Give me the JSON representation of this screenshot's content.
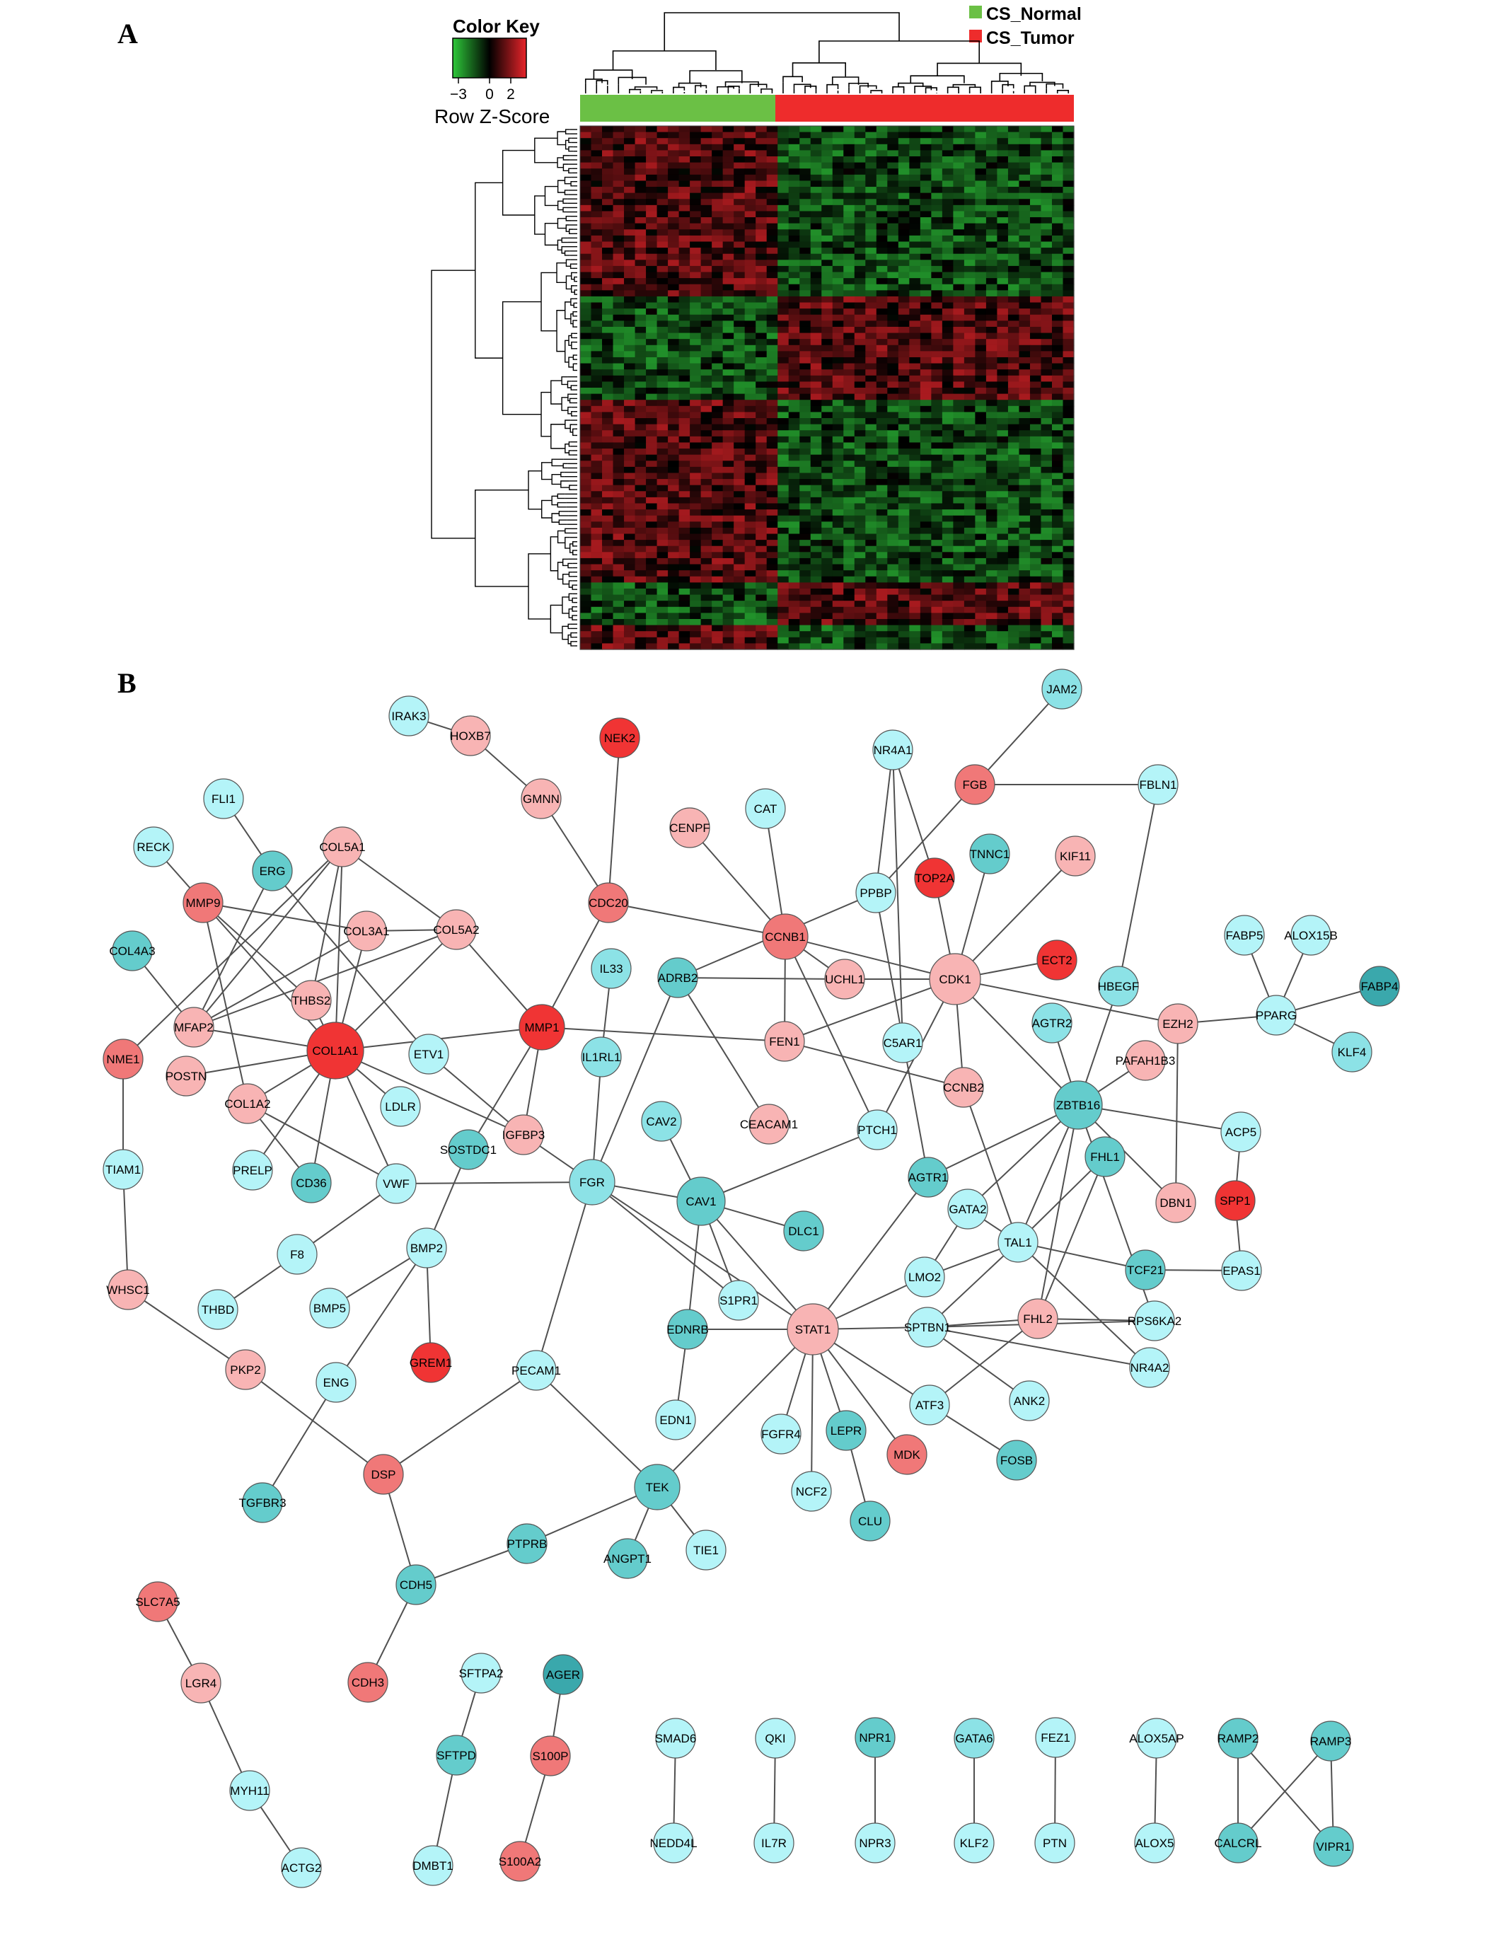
{
  "panels": {
    "a": "A",
    "b": "B"
  },
  "heatmap": {
    "color_key_title": "Color Key",
    "color_key_ticks": [
      "−3",
      "0",
      "2"
    ],
    "color_key_label": "Row Z-Score",
    "scale_colors": [
      "#2ec83a",
      "#000000",
      "#e8242a"
    ],
    "legend": [
      {
        "label": "CS_Normal",
        "color": "#6bc045"
      },
      {
        "label": "CS_Tumor",
        "color": "#ee2c2c"
      }
    ],
    "normal_samples": 18,
    "tumor_samples": 27,
    "row_blocks": [
      {
        "normal": "up",
        "tumor": "down",
        "rows": 28
      },
      {
        "normal": "down",
        "tumor": "up",
        "rows": 17
      },
      {
        "normal": "up",
        "tumor": "down",
        "rows": 30
      },
      {
        "normal": "down",
        "tumor": "up",
        "rows": 7
      },
      {
        "normal": "up",
        "tumor": "down",
        "rows": 4
      }
    ]
  },
  "network": {
    "node_colors": {
      "red": "#f03434",
      "salmon": "#f07878",
      "pink": "#f8b4b4",
      "cyan_light": "#b4f4f8",
      "cyan": "#8ce2e6",
      "teal": "#64cccc",
      "teal_dark": "#3aa8ac"
    },
    "nodes": [
      {
        "id": "IRAK3",
        "c": "cyan_light"
      },
      {
        "id": "HOXB7",
        "c": "pink"
      },
      {
        "id": "NEK2",
        "c": "red"
      },
      {
        "id": "JAM2",
        "c": "cyan"
      },
      {
        "id": "NR4A1",
        "c": "cyan_light"
      },
      {
        "id": "FGB",
        "c": "salmon"
      },
      {
        "id": "FBLN1",
        "c": "cyan_light"
      },
      {
        "id": "FLI1",
        "c": "cyan_light"
      },
      {
        "id": "GMNN",
        "c": "pink"
      },
      {
        "id": "CAT",
        "c": "cyan_light"
      },
      {
        "id": "CENPF",
        "c": "pink"
      },
      {
        "id": "RECK",
        "c": "cyan_light"
      },
      {
        "id": "ERG",
        "c": "teal"
      },
      {
        "id": "COL5A1",
        "c": "pink"
      },
      {
        "id": "TNNC1",
        "c": "teal"
      },
      {
        "id": "KIF11",
        "c": "pink"
      },
      {
        "id": "TOP2A",
        "c": "red"
      },
      {
        "id": "MMP9",
        "c": "salmon"
      },
      {
        "id": "CDC20",
        "c": "salmon"
      },
      {
        "id": "PPBP",
        "c": "cyan_light"
      },
      {
        "id": "COL3A1",
        "c": "pink"
      },
      {
        "id": "COL5A2",
        "c": "pink"
      },
      {
        "id": "CCNB1",
        "c": "salmon"
      },
      {
        "id": "COL4A3",
        "c": "teal"
      },
      {
        "id": "ALOX15B",
        "c": "cyan_light"
      },
      {
        "id": "FABP5",
        "c": "cyan_light"
      },
      {
        "id": "ECT2",
        "c": "red"
      },
      {
        "id": "IL33",
        "c": "cyan"
      },
      {
        "id": "ADRB2",
        "c": "teal"
      },
      {
        "id": "THBS2",
        "c": "pink"
      },
      {
        "id": "UCHL1",
        "c": "pink"
      },
      {
        "id": "CDK1",
        "c": "pink"
      },
      {
        "id": "HBEGF",
        "c": "cyan"
      },
      {
        "id": "FABP4",
        "c": "teal_dark"
      },
      {
        "id": "MMP1",
        "c": "red"
      },
      {
        "id": "PPARG",
        "c": "cyan_light"
      },
      {
        "id": "MFAP2",
        "c": "pink"
      },
      {
        "id": "AGTR2",
        "c": "cyan"
      },
      {
        "id": "EZH2",
        "c": "pink"
      },
      {
        "id": "C5AR1",
        "c": "cyan_light"
      },
      {
        "id": "FEN1",
        "c": "pink"
      },
      {
        "id": "COL1A1",
        "c": "red"
      },
      {
        "id": "NME1",
        "c": "salmon"
      },
      {
        "id": "ETV1",
        "c": "cyan_light"
      },
      {
        "id": "IL1RL1",
        "c": "cyan"
      },
      {
        "id": "PAFAH1B3",
        "c": "pink"
      },
      {
        "id": "KLF4",
        "c": "cyan"
      },
      {
        "id": "POSTN",
        "c": "pink"
      },
      {
        "id": "CCNB2",
        "c": "pink"
      },
      {
        "id": "ZBTB16",
        "c": "teal"
      },
      {
        "id": "COL1A2",
        "c": "pink"
      },
      {
        "id": "LDLR",
        "c": "cyan_light"
      },
      {
        "id": "CAV2",
        "c": "cyan"
      },
      {
        "id": "CEACAM1",
        "c": "pink"
      },
      {
        "id": "PTCH1",
        "c": "cyan_light"
      },
      {
        "id": "ACP5",
        "c": "cyan_light"
      },
      {
        "id": "SOSTDC1",
        "c": "teal"
      },
      {
        "id": "IGFBP3",
        "c": "pink"
      },
      {
        "id": "FHL1",
        "c": "teal"
      },
      {
        "id": "TIAM1",
        "c": "cyan_light"
      },
      {
        "id": "PRELP",
        "c": "cyan_light"
      },
      {
        "id": "CD36",
        "c": "teal"
      },
      {
        "id": "VWF",
        "c": "cyan_light"
      },
      {
        "id": "FGR",
        "c": "cyan"
      },
      {
        "id": "AGTR1",
        "c": "teal"
      },
      {
        "id": "CAV1",
        "c": "teal"
      },
      {
        "id": "GATA2",
        "c": "cyan_light"
      },
      {
        "id": "SPP1",
        "c": "red"
      },
      {
        "id": "DBN1",
        "c": "pink"
      },
      {
        "id": "DLC1",
        "c": "teal"
      },
      {
        "id": "BMP2",
        "c": "cyan_light"
      },
      {
        "id": "TAL1",
        "c": "cyan_light"
      },
      {
        "id": "F8",
        "c": "cyan_light"
      },
      {
        "id": "TCF21",
        "c": "teal"
      },
      {
        "id": "EPAS1",
        "c": "cyan_light"
      },
      {
        "id": "LMO2",
        "c": "cyan_light"
      },
      {
        "id": "WHSC1",
        "c": "pink"
      },
      {
        "id": "S1PR1",
        "c": "cyan_light"
      },
      {
        "id": "THBD",
        "c": "cyan_light"
      },
      {
        "id": "BMP5",
        "c": "cyan_light"
      },
      {
        "id": "FHL2",
        "c": "pink"
      },
      {
        "id": "RPS6KA2",
        "c": "cyan_light"
      },
      {
        "id": "EDNRB",
        "c": "teal"
      },
      {
        "id": "STAT1",
        "c": "pink"
      },
      {
        "id": "SPTBN1",
        "c": "cyan_light"
      },
      {
        "id": "GREM1",
        "c": "red"
      },
      {
        "id": "PKP2",
        "c": "pink"
      },
      {
        "id": "PECAM1",
        "c": "cyan_light"
      },
      {
        "id": "ENG",
        "c": "cyan_light"
      },
      {
        "id": "NR4A2",
        "c": "cyan_light"
      },
      {
        "id": "ATF3",
        "c": "cyan_light"
      },
      {
        "id": "ANK2",
        "c": "cyan_light"
      },
      {
        "id": "EDN1",
        "c": "cyan_light"
      },
      {
        "id": "FGFR4",
        "c": "cyan_light"
      },
      {
        "id": "LEPR",
        "c": "teal"
      },
      {
        "id": "MDK",
        "c": "salmon"
      },
      {
        "id": "FOSB",
        "c": "teal"
      },
      {
        "id": "DSP",
        "c": "salmon"
      },
      {
        "id": "TEK",
        "c": "teal"
      },
      {
        "id": "NCF2",
        "c": "cyan_light"
      },
      {
        "id": "TGFBR3",
        "c": "teal"
      },
      {
        "id": "CLU",
        "c": "teal"
      },
      {
        "id": "PTPRB",
        "c": "teal"
      },
      {
        "id": "TIE1",
        "c": "cyan_light"
      },
      {
        "id": "ANGPT1",
        "c": "teal"
      },
      {
        "id": "CDH5",
        "c": "teal"
      },
      {
        "id": "SLC7A5",
        "c": "salmon"
      },
      {
        "id": "LGR4",
        "c": "pink"
      },
      {
        "id": "CDH3",
        "c": "salmon"
      },
      {
        "id": "SFTPA2",
        "c": "cyan_light"
      },
      {
        "id": "AGER",
        "c": "teal_dark"
      },
      {
        "id": "SMAD6",
        "c": "cyan_light"
      },
      {
        "id": "QKI",
        "c": "cyan_light"
      },
      {
        "id": "NPR1",
        "c": "teal"
      },
      {
        "id": "GATA6",
        "c": "cyan"
      },
      {
        "id": "FEZ1",
        "c": "cyan_light"
      },
      {
        "id": "ALOX5AP",
        "c": "cyan_light"
      },
      {
        "id": "RAMP2",
        "c": "teal"
      },
      {
        "id": "RAMP3",
        "c": "teal"
      },
      {
        "id": "SFTPD",
        "c": "teal"
      },
      {
        "id": "S100P",
        "c": "salmon"
      },
      {
        "id": "MYH11",
        "c": "cyan_light"
      },
      {
        "id": "NEDD4L",
        "c": "cyan_light"
      },
      {
        "id": "IL7R",
        "c": "cyan_light"
      },
      {
        "id": "NPR3",
        "c": "cyan_light"
      },
      {
        "id": "KLF2",
        "c": "cyan_light"
      },
      {
        "id": "PTN",
        "c": "cyan_light"
      },
      {
        "id": "ALOX5",
        "c": "cyan_light"
      },
      {
        "id": "CALCRL",
        "c": "teal"
      },
      {
        "id": "VIPR1",
        "c": "teal"
      },
      {
        "id": "DMBT1",
        "c": "cyan_light"
      },
      {
        "id": "S100A2",
        "c": "salmon"
      },
      {
        "id": "ACTG2",
        "c": "cyan_light"
      }
    ],
    "edges": [
      [
        "IRAK3",
        "HOXB7"
      ],
      [
        "HOXB7",
        "GMNN"
      ],
      [
        "GMNN",
        "CDC20"
      ],
      [
        "NEK2",
        "CDC20"
      ],
      [
        "CDC20",
        "CCNB1"
      ],
      [
        "CDC20",
        "MMP1"
      ],
      [
        "CENPF",
        "CCNB1"
      ],
      [
        "CAT",
        "CCNB1"
      ],
      [
        "CCNB1",
        "CDK1"
      ],
      [
        "CCNB1",
        "FEN1"
      ],
      [
        "CCNB1",
        "PTCH1"
      ],
      [
        "UCHL1",
        "CCNB1"
      ],
      [
        "NR4A1",
        "PPBP"
      ],
      [
        "NR4A1",
        "TOP2A"
      ],
      [
        "NR4A1",
        "C5AR1"
      ],
      [
        "FGB",
        "PPBP"
      ],
      [
        "FGB",
        "FBLN1"
      ],
      [
        "FGB",
        "JAM2"
      ],
      [
        "FBLN1",
        "HBEGF"
      ],
      [
        "TOP2A",
        "CDK1"
      ],
      [
        "TNNC1",
        "CDK1"
      ],
      [
        "KIF11",
        "CDK1"
      ],
      [
        "ECT2",
        "CDK1"
      ],
      [
        "CDK1",
        "UCHL1"
      ],
      [
        "CDK1",
        "EZH2"
      ],
      [
        "CDK1",
        "ZBTB16"
      ],
      [
        "CDK1",
        "FEN1"
      ],
      [
        "CDK1",
        "CCNB2"
      ],
      [
        "CDK1",
        "PTCH1"
      ],
      [
        "PPBP",
        "ADRB2"
      ],
      [
        "PPBP",
        "AGTR1"
      ],
      [
        "ADRB2",
        "UCHL1"
      ],
      [
        "ADRB2",
        "CEACAM1"
      ],
      [
        "ADRB2",
        "FGR"
      ],
      [
        "FABP5",
        "PPARG"
      ],
      [
        "ALOX15B",
        "PPARG"
      ],
      [
        "FABP4",
        "PPARG"
      ],
      [
        "KLF4",
        "PPARG"
      ],
      [
        "PPARG",
        "EZH2"
      ],
      [
        "EZH2",
        "DBN1"
      ],
      [
        "HBEGF",
        "ZBTB16"
      ],
      [
        "AGTR2",
        "ZBTB16"
      ],
      [
        "PAFAH1B3",
        "ZBTB16"
      ],
      [
        "ZBTB16",
        "ACP5"
      ],
      [
        "ZBTB16",
        "TAL1"
      ],
      [
        "ZBTB16",
        "GATA2"
      ],
      [
        "ZBTB16",
        "AGTR1"
      ],
      [
        "ZBTB16",
        "FHL2"
      ],
      [
        "ZBTB16",
        "DBN1"
      ],
      [
        "ZBTB16",
        "RPS6KA2"
      ],
      [
        "ACP5",
        "SPP1"
      ],
      [
        "SPP1",
        "EPAS1"
      ],
      [
        "FHL1",
        "FHL2"
      ],
      [
        "FHL1",
        "TAL1"
      ],
      [
        "TAL1",
        "GATA2"
      ],
      [
        "TAL1",
        "LMO2"
      ],
      [
        "TAL1",
        "TCF21"
      ],
      [
        "TAL1",
        "NR4A2"
      ],
      [
        "TAL1",
        "SPTBN1"
      ],
      [
        "TAL1",
        "CCNB2"
      ],
      [
        "TCF21",
        "EPAS1"
      ],
      [
        "GATA2",
        "LMO2"
      ],
      [
        "FHL2",
        "SPTBN1"
      ],
      [
        "FHL2",
        "ATF3"
      ],
      [
        "FHL2",
        "RPS6KA2"
      ],
      [
        "SPTBN1",
        "RPS6KA2"
      ],
      [
        "SPTBN1",
        "NR4A2"
      ],
      [
        "SPTBN1",
        "ANK2"
      ],
      [
        "SPTBN1",
        "STAT1"
      ],
      [
        "STAT1",
        "LMO2"
      ],
      [
        "STAT1",
        "AGTR1"
      ],
      [
        "STAT1",
        "EDNRB"
      ],
      [
        "STAT1",
        "CAV1"
      ],
      [
        "STAT1",
        "FGR"
      ],
      [
        "STAT1",
        "ATF3"
      ],
      [
        "STAT1",
        "MDK"
      ],
      [
        "STAT1",
        "LEPR"
      ],
      [
        "STAT1",
        "NCF2"
      ],
      [
        "STAT1",
        "FGFR4"
      ],
      [
        "STAT1",
        "TEK"
      ],
      [
        "ATF3",
        "FOSB"
      ],
      [
        "LEPR",
        "CLU"
      ],
      [
        "EDNRB",
        "EDN1"
      ],
      [
        "EDNRB",
        "CAV1"
      ],
      [
        "CAV2",
        "CAV1"
      ],
      [
        "CAV1",
        "DLC1"
      ],
      [
        "CAV1",
        "S1PR1"
      ],
      [
        "CAV1",
        "PTCH1"
      ],
      [
        "CAV1",
        "FGR"
      ],
      [
        "FGR",
        "S1PR1"
      ],
      [
        "FGR",
        "IL1RL1"
      ],
      [
        "FGR",
        "VWF"
      ],
      [
        "FGR",
        "IGFBP3"
      ],
      [
        "FGR",
        "PECAM1"
      ],
      [
        "IL1RL1",
        "IL33"
      ],
      [
        "PECAM1",
        "TEK"
      ],
      [
        "PECAM1",
        "DSP"
      ],
      [
        "TEK",
        "PTPRB"
      ],
      [
        "TEK",
        "ANGPT1"
      ],
      [
        "TEK",
        "TIE1"
      ],
      [
        "PTPRB",
        "CDH5"
      ],
      [
        "CDH5",
        "DSP"
      ],
      [
        "CDH5",
        "CDH3"
      ],
      [
        "DSP",
        "PKP2"
      ],
      [
        "PKP2",
        "WHSC1"
      ],
      [
        "WHSC1",
        "TIAM1"
      ],
      [
        "TIAM1",
        "NME1"
      ],
      [
        "NME1",
        "COL5A1"
      ],
      [
        "MMP1",
        "FEN1"
      ],
      [
        "MMP1",
        "COL5A2"
      ],
      [
        "MMP1",
        "COL1A1"
      ],
      [
        "MMP1",
        "IGFBP3"
      ],
      [
        "MMP1",
        "SOSTDC1"
      ],
      [
        "FEN1",
        "CCNB2"
      ],
      [
        "COL1A1",
        "COL5A1"
      ],
      [
        "COL1A1",
        "COL3A1"
      ],
      [
        "COL1A1",
        "COL5A2"
      ],
      [
        "COL1A1",
        "MMP9"
      ],
      [
        "COL1A1",
        "THBS2"
      ],
      [
        "COL1A1",
        "MFAP2"
      ],
      [
        "COL1A1",
        "POSTN"
      ],
      [
        "COL1A1",
        "COL1A2"
      ],
      [
        "COL1A1",
        "PRELP"
      ],
      [
        "COL1A1",
        "CD36"
      ],
      [
        "COL1A1",
        "VWF"
      ],
      [
        "COL1A1",
        "IGFBP3"
      ],
      [
        "COL1A1",
        "LDLR"
      ],
      [
        "MMP9",
        "COL3A1"
      ],
      [
        "MMP9",
        "THBS2"
      ],
      [
        "MMP9",
        "COL1A2"
      ],
      [
        "FLI1",
        "ERG"
      ],
      [
        "ERG",
        "ETV1"
      ],
      [
        "ERG",
        "MFAP2"
      ],
      [
        "RECK",
        "MMP9"
      ],
      [
        "COL4A3",
        "MFAP2"
      ],
      [
        "COL5A1",
        "COL5A2"
      ],
      [
        "COL5A1",
        "THBS2"
      ],
      [
        "COL5A1",
        "MFAP2"
      ],
      [
        "COL3A1",
        "COL5A2"
      ],
      [
        "COL3A1",
        "MFAP2"
      ],
      [
        "COL5A2",
        "MFAP2"
      ],
      [
        "ETV1",
        "IGFBP3"
      ],
      [
        "COL1A2",
        "VWF"
      ],
      [
        "COL1A2",
        "CD36"
      ],
      [
        "SOSTDC1",
        "BMP2"
      ],
      [
        "BMP2",
        "BMP5"
      ],
      [
        "BMP2",
        "GREM1"
      ],
      [
        "BMP2",
        "ENG"
      ],
      [
        "ENG",
        "TGFBR3"
      ],
      [
        "VWF",
        "F8"
      ],
      [
        "F8",
        "THBD"
      ],
      [
        "SLC7A5",
        "LGR4"
      ],
      [
        "LGR4",
        "MYH11"
      ],
      [
        "MYH11",
        "ACTG2"
      ],
      [
        "SFTPA2",
        "SFTPD"
      ],
      [
        "SFTPD",
        "DMBT1"
      ],
      [
        "AGER",
        "S100P"
      ],
      [
        "S100P",
        "S100A2"
      ],
      [
        "SMAD6",
        "NEDD4L"
      ],
      [
        "QKI",
        "IL7R"
      ],
      [
        "NPR1",
        "NPR3"
      ],
      [
        "GATA6",
        "KLF2"
      ],
      [
        "FEZ1",
        "PTN"
      ],
      [
        "ALOX5AP",
        "ALOX5"
      ],
      [
        "RAMP2",
        "CALCRL"
      ],
      [
        "RAMP2",
        "VIPR1"
      ],
      [
        "RAMP3",
        "CALCRL"
      ],
      [
        "RAMP3",
        "VIPR1"
      ]
    ]
  }
}
